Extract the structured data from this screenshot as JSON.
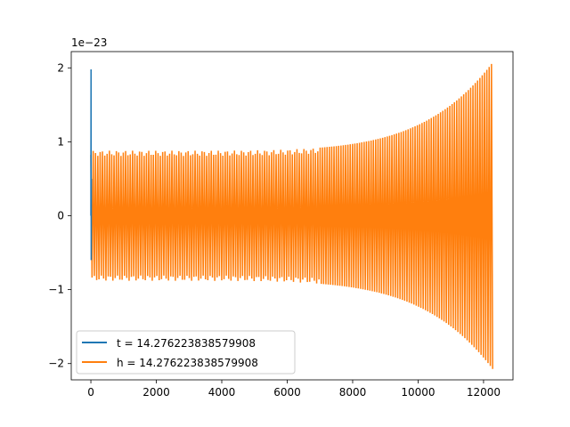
{
  "chart_data": {
    "type": "line",
    "title": "",
    "xlabel": "",
    "ylabel": "",
    "offset_text": "1e−23",
    "xlim": [
      -600,
      12900
    ],
    "ylim": [
      -2.22,
      2.22
    ],
    "xticks": [
      0,
      2000,
      4000,
      6000,
      8000,
      10000,
      12000
    ],
    "xtick_labels": [
      "0",
      "2000",
      "4000",
      "6000",
      "8000",
      "10000",
      "12000"
    ],
    "yticks": [
      -2,
      -1,
      0,
      1,
      2
    ],
    "ytick_labels": [
      "−2",
      "−1",
      "0",
      "1",
      "2"
    ],
    "grid": false,
    "legend_position": "lower-left",
    "series": [
      {
        "name": "t = 14.276223838579908",
        "color": "#1f77b4",
        "description_points": [
          {
            "x": 0,
            "y": 0
          },
          {
            "x": 5,
            "y": 1.98
          },
          {
            "x": 10,
            "y": -0.6
          },
          {
            "x": 15,
            "y": 0.5
          }
        ]
      },
      {
        "name": "h = 14.276223838579908",
        "color": "#ff7f0e",
        "envelope": {
          "x_start": 0,
          "x_end": 12290,
          "amplitude_start": 0.88,
          "amplitude_end": 2.08,
          "peak_x": 12280
        }
      }
    ]
  }
}
